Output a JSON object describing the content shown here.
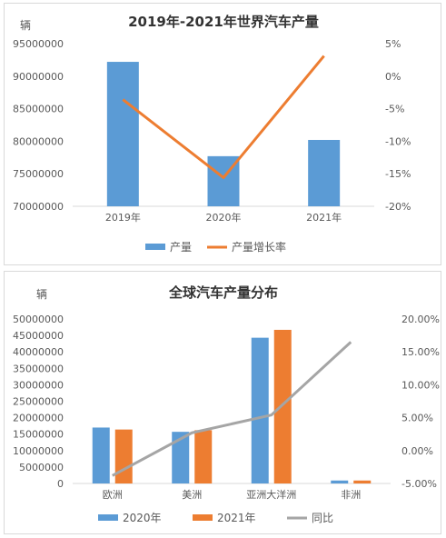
{
  "chart_data": [
    {
      "type": "bar",
      "title": "2019年-2021年世界汽车产量",
      "ylabel": "辆",
      "categories": [
        "2019年",
        "2020年",
        "2021年"
      ],
      "series": [
        {
          "name": "产量",
          "type": "bar",
          "axis": "left",
          "color": "#5b9bd5",
          "values": [
            92200000,
            77700000,
            80200000
          ]
        },
        {
          "name": "产量增长率",
          "type": "line",
          "axis": "right",
          "color": "#ed7d31",
          "values": [
            -3.6,
            -15.6,
            3.1
          ]
        }
      ],
      "ylim": [
        70000000,
        95000000
      ],
      "yticks": [
        "70000000",
        "75000000",
        "80000000",
        "85000000",
        "90000000",
        "95000000"
      ],
      "y2lim": [
        -20,
        5
      ],
      "y2ticks": [
        "-20%",
        "-15%",
        "-10%",
        "-5%",
        "0%",
        "5%"
      ],
      "legend": "bottom"
    },
    {
      "type": "bar",
      "title": "全球汽车产量分布",
      "ylabel": "辆",
      "categories": [
        "欧洲",
        "美洲",
        "亚洲大洋洲",
        "非洲"
      ],
      "series": [
        {
          "name": "2020年",
          "type": "bar",
          "axis": "left",
          "color": "#5b9bd5",
          "values": [
            17000000,
            15700000,
            44300000,
            900000
          ]
        },
        {
          "name": "2021年",
          "type": "bar",
          "axis": "left",
          "color": "#ed7d31",
          "values": [
            16400000,
            16200000,
            46700000,
            900000
          ]
        },
        {
          "name": "同比",
          "type": "line",
          "axis": "right",
          "color": "#a5a5a5",
          "values": [
            -3.8,
            2.7,
            5.4,
            16.5
          ]
        }
      ],
      "ylim": [
        0,
        50000000
      ],
      "yticks": [
        "0",
        "5000000",
        "10000000",
        "15000000",
        "20000000",
        "25000000",
        "30000000",
        "35000000",
        "40000000",
        "45000000",
        "50000000"
      ],
      "y2lim": [
        -5,
        20
      ],
      "y2ticks": [
        "-5.00%",
        "0.00%",
        "5.00%",
        "10.00%",
        "15.00%",
        "20.00%"
      ],
      "legend": "bottom"
    }
  ]
}
